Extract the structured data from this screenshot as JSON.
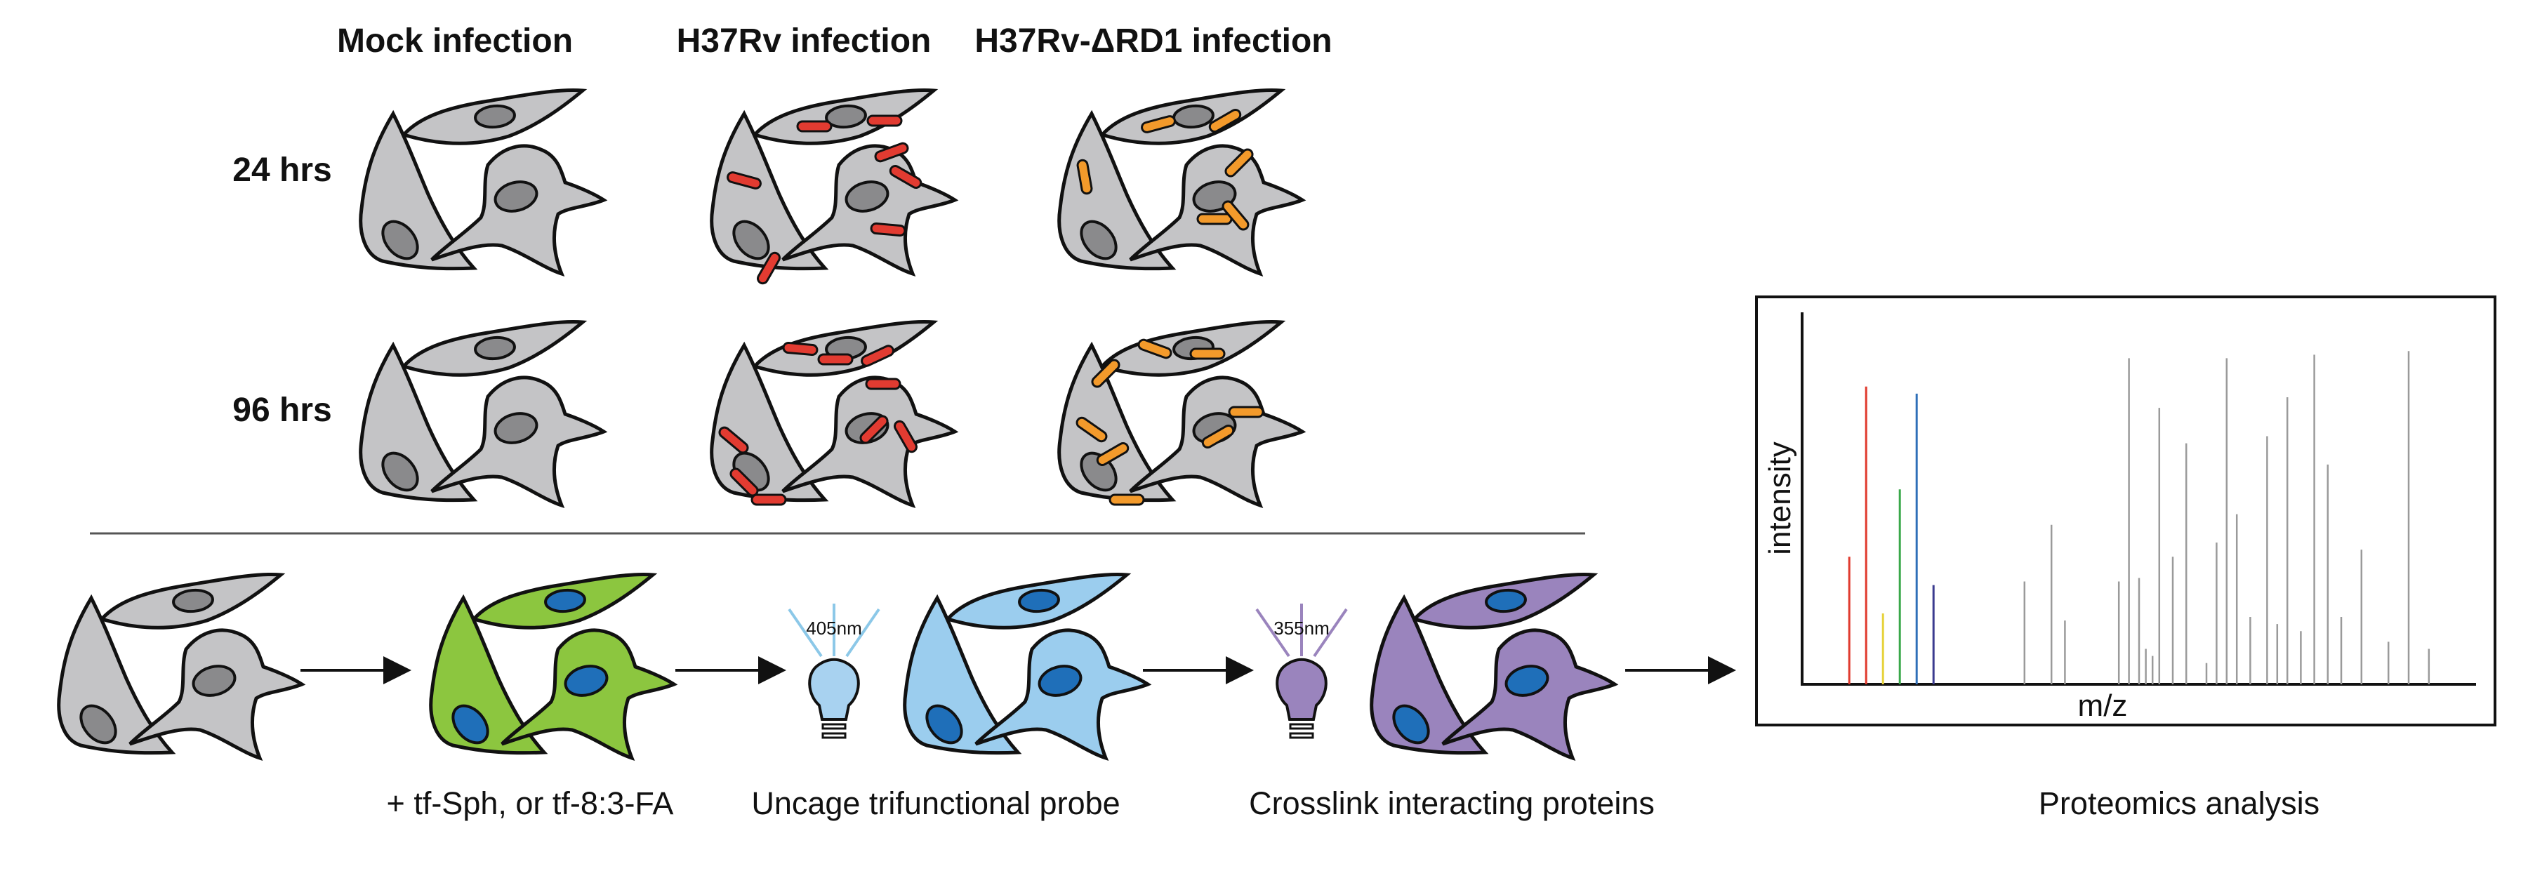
{
  "headers": {
    "mock": "Mock infection",
    "h37rv": "H37Rv infection",
    "delta": "H37Rv-ΔRD1 infection"
  },
  "timepoints": {
    "t24": "24 hrs",
    "t96": "96 hrs"
  },
  "workflow": {
    "step1_caption": "+ tf-Sph, or tf-8:3-FA",
    "step2_caption": "Uncage trifunctional probe",
    "step2_wavelength": "405nm",
    "step3_caption": "Crosslink interacting proteins",
    "step3_wavelength": "355nm",
    "step4_caption": "Proteomics analysis"
  },
  "spectrum": {
    "xlabel": "m/z",
    "ylabel": "intensity",
    "colored_peaks": [
      {
        "mz": 0.07,
        "intensity": 0.36,
        "color": "#e03a2e"
      },
      {
        "mz": 0.095,
        "intensity": 0.84,
        "color": "#e03a2e"
      },
      {
        "mz": 0.12,
        "intensity": 0.2,
        "color": "#e6d23a"
      },
      {
        "mz": 0.145,
        "intensity": 0.55,
        "color": "#3aa84a"
      },
      {
        "mz": 0.17,
        "intensity": 0.82,
        "color": "#2f6fb8"
      },
      {
        "mz": 0.195,
        "intensity": 0.28,
        "color": "#3b3b8f"
      }
    ],
    "grey_peaks": [
      {
        "mz": 0.33,
        "intensity": 0.29
      },
      {
        "mz": 0.37,
        "intensity": 0.45
      },
      {
        "mz": 0.39,
        "intensity": 0.18
      },
      {
        "mz": 0.47,
        "intensity": 0.29
      },
      {
        "mz": 0.485,
        "intensity": 0.92
      },
      {
        "mz": 0.5,
        "intensity": 0.3
      },
      {
        "mz": 0.51,
        "intensity": 0.1
      },
      {
        "mz": 0.52,
        "intensity": 0.08
      },
      {
        "mz": 0.53,
        "intensity": 0.78
      },
      {
        "mz": 0.55,
        "intensity": 0.36
      },
      {
        "mz": 0.57,
        "intensity": 0.68
      },
      {
        "mz": 0.6,
        "intensity": 0.06
      },
      {
        "mz": 0.615,
        "intensity": 0.4
      },
      {
        "mz": 0.63,
        "intensity": 0.92
      },
      {
        "mz": 0.645,
        "intensity": 0.48
      },
      {
        "mz": 0.665,
        "intensity": 0.19
      },
      {
        "mz": 0.69,
        "intensity": 0.7
      },
      {
        "mz": 0.705,
        "intensity": 0.17
      },
      {
        "mz": 0.72,
        "intensity": 0.81
      },
      {
        "mz": 0.74,
        "intensity": 0.15
      },
      {
        "mz": 0.76,
        "intensity": 0.93
      },
      {
        "mz": 0.78,
        "intensity": 0.62
      },
      {
        "mz": 0.8,
        "intensity": 0.19
      },
      {
        "mz": 0.83,
        "intensity": 0.38
      },
      {
        "mz": 0.87,
        "intensity": 0.12
      },
      {
        "mz": 0.9,
        "intensity": 0.94
      },
      {
        "mz": 0.93,
        "intensity": 0.1
      }
    ]
  },
  "colors": {
    "cell_grey": "#c4c4c6",
    "nucleus_grey": "#8a8a8c",
    "cell_green": "#8cc63f",
    "cell_lightblue": "#9bcdee",
    "cell_purple": "#9a84bd",
    "nucleus_blue": "#1f6fb9",
    "bacteria_red": "#e23b31",
    "bacteria_orange": "#f39a2b",
    "beam_blue": "#8cc8e8",
    "beam_purple": "#9a84bd",
    "bulb_blue": "#a8d2f0",
    "bulb_purple": "#9a84bd"
  }
}
